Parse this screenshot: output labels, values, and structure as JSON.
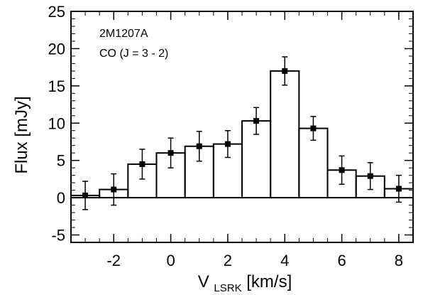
{
  "chart_data": {
    "type": "bar",
    "style": "step-histogram-with-errorbars",
    "xlabel_main": "V",
    "xlabel_sub": "LSRK",
    "xlabel_unit": " [km/s]",
    "ylabel": "Flux [mJy]",
    "annotations": [
      "2M1207A",
      "CO (J = 3 - 2)"
    ],
    "xlim": [
      -3.5,
      8.5
    ],
    "ylim": [
      -6,
      25
    ],
    "x_ticks": [
      -2,
      0,
      2,
      4,
      6,
      8
    ],
    "y_ticks": [
      -5,
      0,
      5,
      10,
      15,
      20,
      25
    ],
    "bin_width": 1.0,
    "zero_line": "dotted",
    "grid": false,
    "series": [
      {
        "x": [
          -3,
          -2,
          -1,
          0,
          1,
          2,
          3,
          4,
          5,
          6,
          7,
          8
        ],
        "values": [
          0.3,
          1.1,
          4.5,
          6.0,
          6.9,
          7.2,
          10.3,
          17.0,
          9.3,
          3.7,
          2.9,
          1.2
        ],
        "errors": [
          1.9,
          2.1,
          2.0,
          2.0,
          2.0,
          1.8,
          1.8,
          1.9,
          1.6,
          1.9,
          1.8,
          1.8
        ]
      }
    ]
  }
}
